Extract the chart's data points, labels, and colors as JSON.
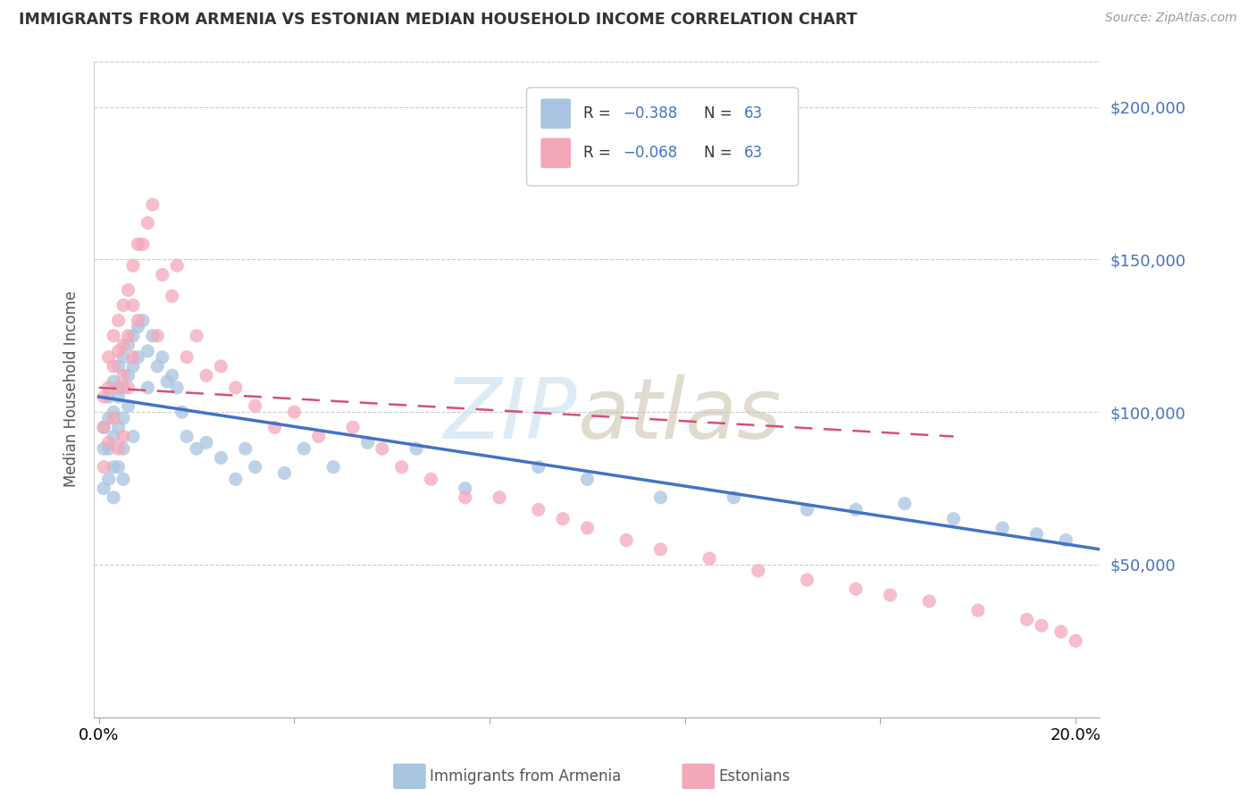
{
  "title": "IMMIGRANTS FROM ARMENIA VS ESTONIAN MEDIAN HOUSEHOLD INCOME CORRELATION CHART",
  "source": "Source: ZipAtlas.com",
  "ylabel": "Median Household Income",
  "y_ticks": [
    50000,
    100000,
    150000,
    200000
  ],
  "y_tick_labels": [
    "$50,000",
    "$100,000",
    "$150,000",
    "$200,000"
  ],
  "x_tick_positions": [
    0.0,
    0.04,
    0.08,
    0.12,
    0.16,
    0.2
  ],
  "x_tick_labels": [
    "0.0%",
    "",
    "",
    "",
    "",
    "20.0%"
  ],
  "blue_color": "#a8c4e0",
  "pink_color": "#f4a7b9",
  "line_blue": "#4472c4",
  "line_pink": "#d4507a",
  "ylim": [
    0,
    215000
  ],
  "xlim": [
    -0.001,
    0.205
  ],
  "blue_x": [
    0.001,
    0.001,
    0.001,
    0.002,
    0.002,
    0.002,
    0.002,
    0.003,
    0.003,
    0.003,
    0.003,
    0.003,
    0.004,
    0.004,
    0.004,
    0.004,
    0.005,
    0.005,
    0.005,
    0.005,
    0.005,
    0.006,
    0.006,
    0.006,
    0.007,
    0.007,
    0.007,
    0.008,
    0.008,
    0.009,
    0.01,
    0.01,
    0.011,
    0.012,
    0.013,
    0.014,
    0.015,
    0.016,
    0.017,
    0.018,
    0.02,
    0.022,
    0.025,
    0.028,
    0.03,
    0.032,
    0.038,
    0.042,
    0.048,
    0.055,
    0.065,
    0.075,
    0.09,
    0.1,
    0.115,
    0.13,
    0.145,
    0.155,
    0.165,
    0.175,
    0.185,
    0.192,
    0.198
  ],
  "blue_y": [
    95000,
    88000,
    75000,
    105000,
    98000,
    88000,
    78000,
    110000,
    100000,
    92000,
    82000,
    72000,
    115000,
    105000,
    95000,
    82000,
    118000,
    108000,
    98000,
    88000,
    78000,
    122000,
    112000,
    102000,
    125000,
    115000,
    92000,
    128000,
    118000,
    130000,
    120000,
    108000,
    125000,
    115000,
    118000,
    110000,
    112000,
    108000,
    100000,
    92000,
    88000,
    90000,
    85000,
    78000,
    88000,
    82000,
    80000,
    88000,
    82000,
    90000,
    88000,
    75000,
    82000,
    78000,
    72000,
    72000,
    68000,
    68000,
    70000,
    65000,
    62000,
    60000,
    58000
  ],
  "pink_x": [
    0.001,
    0.001,
    0.001,
    0.002,
    0.002,
    0.002,
    0.003,
    0.003,
    0.003,
    0.004,
    0.004,
    0.004,
    0.004,
    0.005,
    0.005,
    0.005,
    0.005,
    0.006,
    0.006,
    0.006,
    0.007,
    0.007,
    0.007,
    0.008,
    0.008,
    0.009,
    0.01,
    0.011,
    0.012,
    0.013,
    0.015,
    0.016,
    0.018,
    0.02,
    0.022,
    0.025,
    0.028,
    0.032,
    0.036,
    0.04,
    0.045,
    0.052,
    0.058,
    0.062,
    0.068,
    0.075,
    0.082,
    0.09,
    0.095,
    0.1,
    0.108,
    0.115,
    0.125,
    0.135,
    0.145,
    0.155,
    0.162,
    0.17,
    0.18,
    0.19,
    0.193,
    0.197,
    0.2
  ],
  "pink_y": [
    105000,
    95000,
    82000,
    118000,
    108000,
    90000,
    125000,
    115000,
    98000,
    130000,
    120000,
    108000,
    88000,
    135000,
    122000,
    112000,
    92000,
    140000,
    125000,
    108000,
    148000,
    135000,
    118000,
    155000,
    130000,
    155000,
    162000,
    168000,
    125000,
    145000,
    138000,
    148000,
    118000,
    125000,
    112000,
    115000,
    108000,
    102000,
    95000,
    100000,
    92000,
    95000,
    88000,
    82000,
    78000,
    72000,
    72000,
    68000,
    65000,
    62000,
    58000,
    55000,
    52000,
    48000,
    45000,
    42000,
    40000,
    38000,
    35000,
    32000,
    30000,
    28000,
    25000
  ],
  "blue_line_x0": 0.0,
  "blue_line_x1": 0.205,
  "blue_line_y0": 105000,
  "blue_line_y1": 55000,
  "pink_line_x0": 0.0,
  "pink_line_x1": 0.175,
  "pink_line_y0": 108000,
  "pink_line_y1": 92000
}
